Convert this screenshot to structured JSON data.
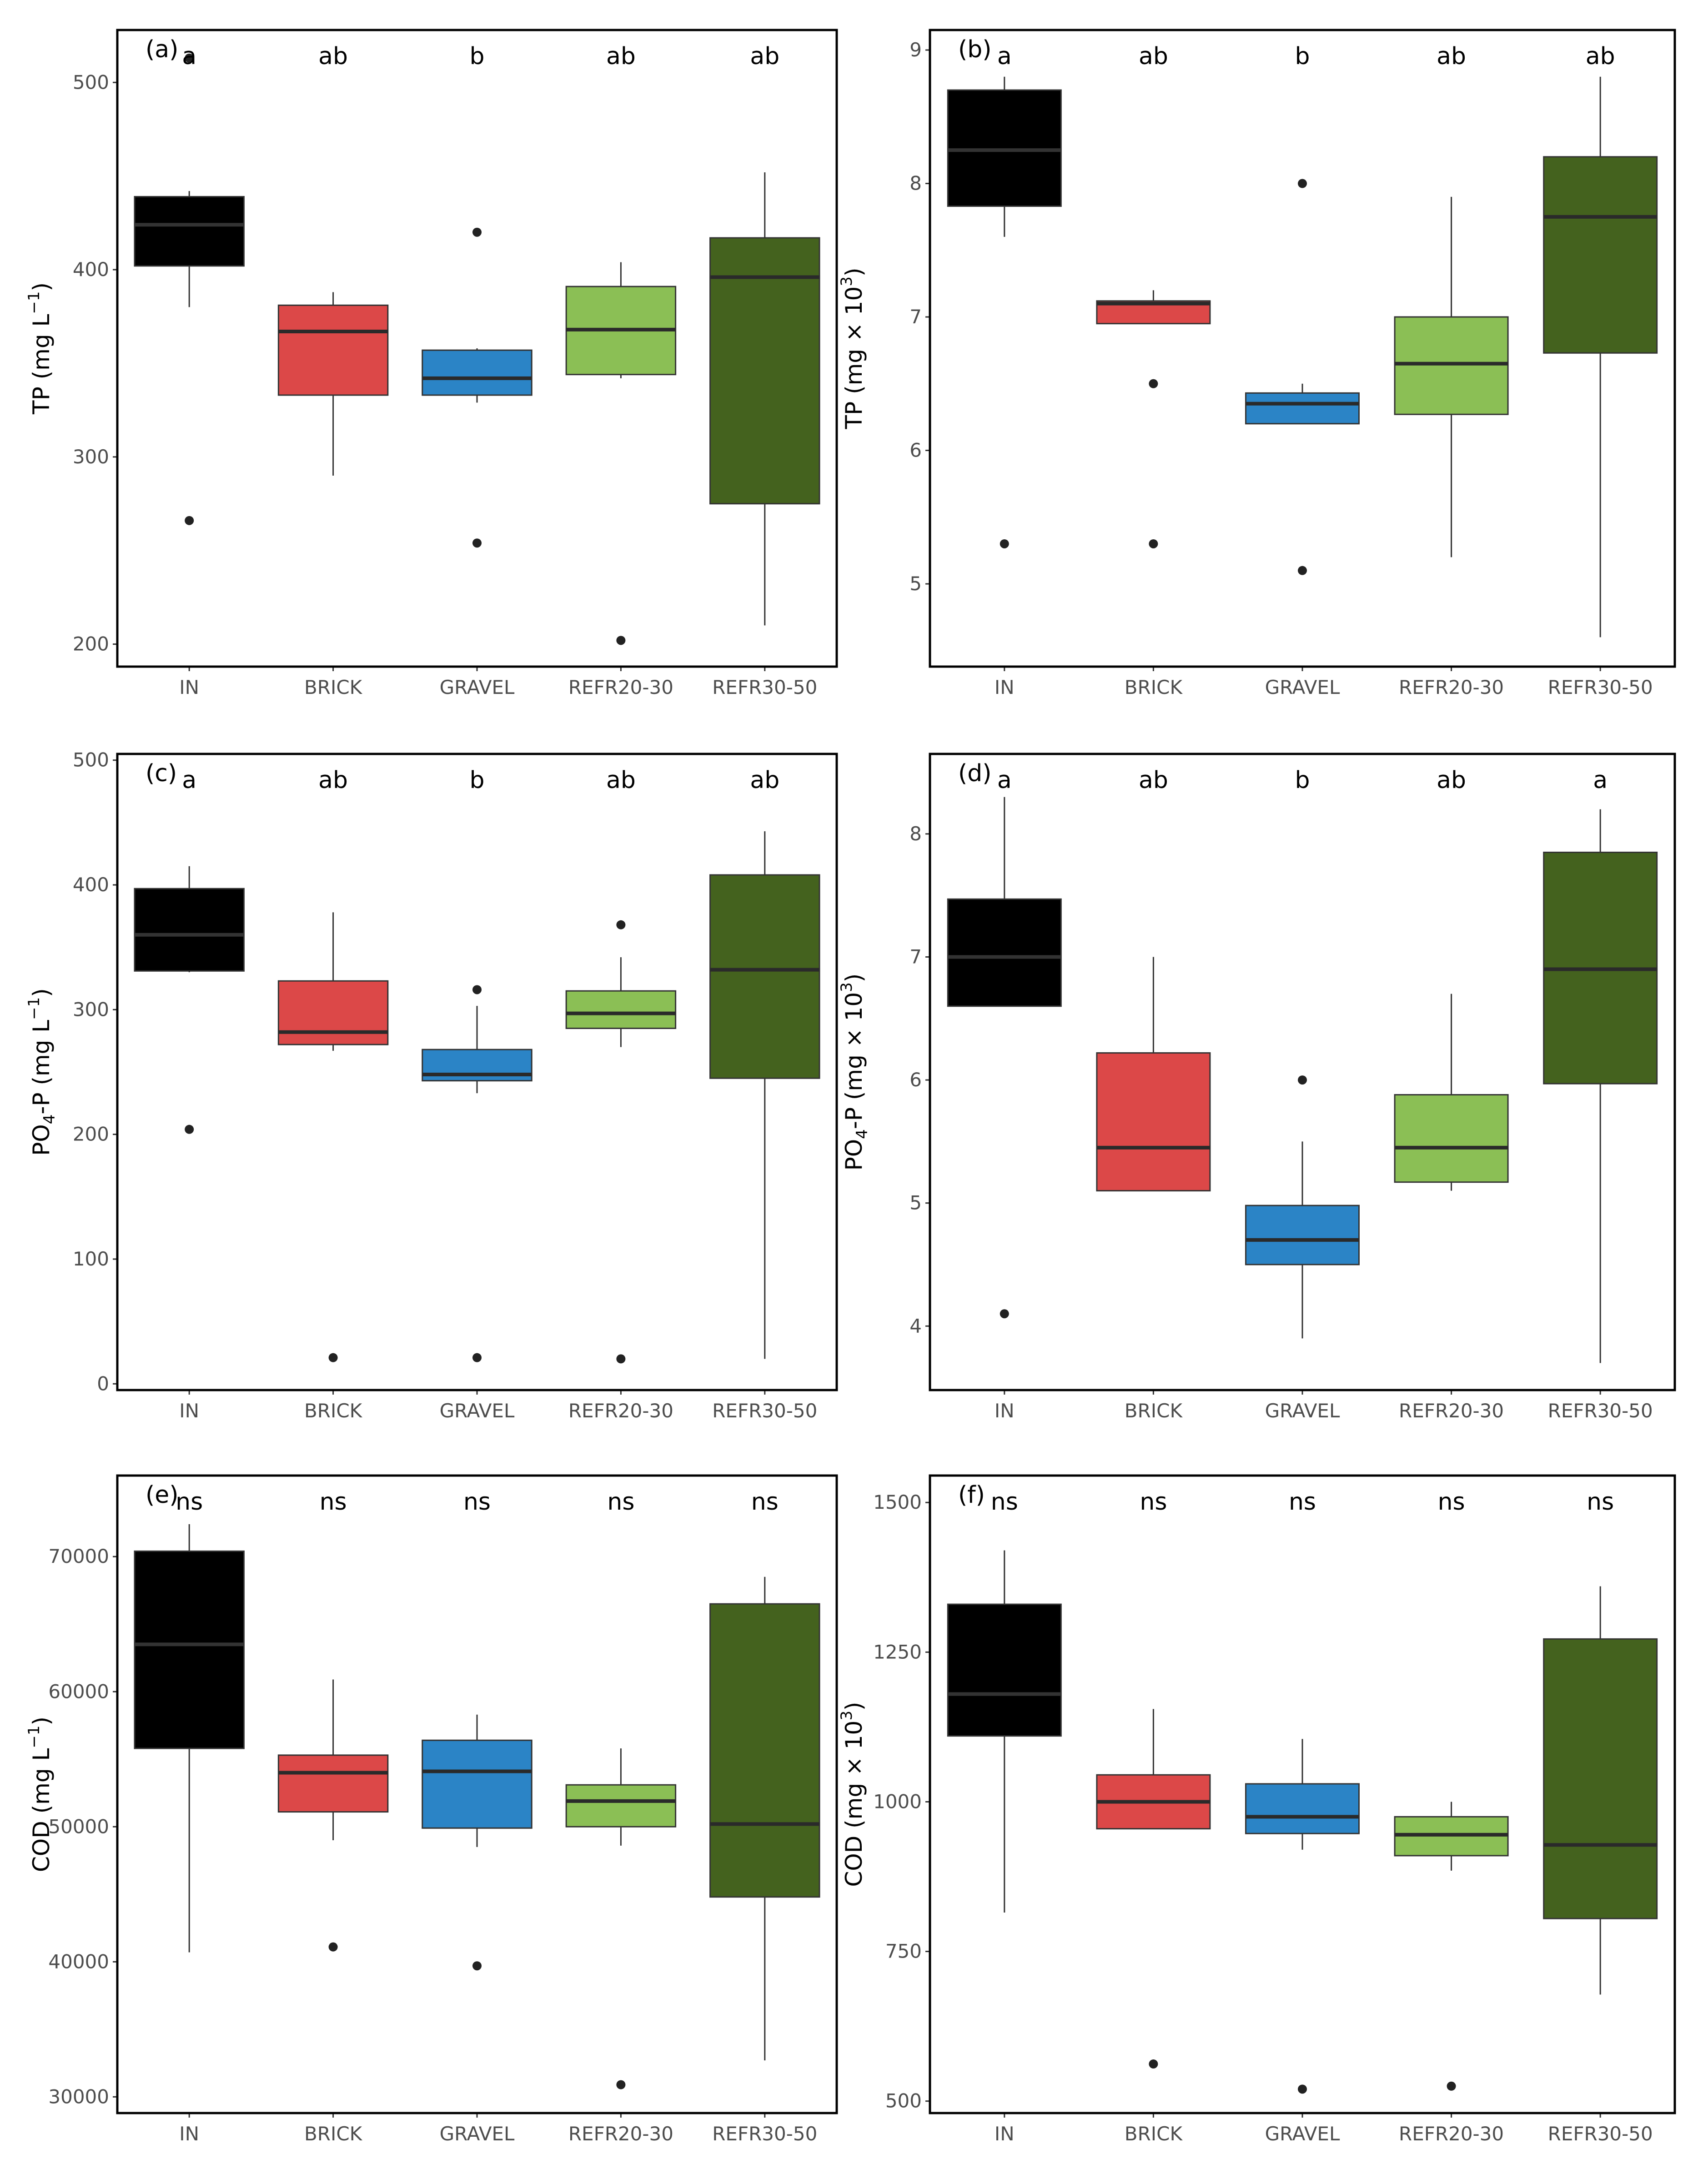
{
  "chart_data": [
    {
      "type": "boxplot",
      "panel_label": "(a)",
      "ylabel": "TP (mg L⁻¹)",
      "ylabel_parts": {
        "main": "TP (mg L",
        "sub": "",
        "sup": "−1",
        "tail": ")"
      },
      "ylim": [
        188,
        528
      ],
      "yticks": [
        200,
        300,
        400,
        500
      ],
      "categories": [
        "IN",
        "BRICK",
        "GRAVEL",
        "REFR20-30",
        "REFR30-50"
      ],
      "colors": [
        "#000000",
        "#dc4848",
        "#2b84c6",
        "#8bbf55",
        "#44621e"
      ],
      "median_color": [
        "#333333",
        "#2a2a2a",
        "#2a2a2a",
        "#2a2a2a",
        "#2a2a2a"
      ],
      "boxes": [
        {
          "q1": 402,
          "median": 424,
          "q3": 439,
          "whisker_low": 380,
          "whisker_high": 442,
          "outliers": [
            513,
            266
          ]
        },
        {
          "q1": 333,
          "median": 367,
          "q3": 381,
          "whisker_low": 290,
          "whisker_high": 388,
          "outliers": []
        },
        {
          "q1": 333,
          "median": 342,
          "q3": 357,
          "whisker_low": 329,
          "whisker_high": 358,
          "outliers": [
            420,
            254
          ]
        },
        {
          "q1": 344,
          "median": 368,
          "q3": 391,
          "whisker_low": 342,
          "whisker_high": 404,
          "outliers": [
            202
          ]
        },
        {
          "q1": 275,
          "median": 396,
          "q3": 417,
          "whisker_low": 210,
          "whisker_high": 452,
          "outliers": []
        }
      ],
      "significance": [
        "a",
        "ab",
        "b",
        "ab",
        "ab"
      ]
    },
    {
      "type": "boxplot",
      "panel_label": "(b)",
      "ylabel": "TP (mg × 10³)",
      "ylabel_parts": {
        "main": "TP (mg × 10",
        "sub": "",
        "sup": "3",
        "tail": ")"
      },
      "ylim": [
        4.38,
        9.15
      ],
      "yticks": [
        5,
        6,
        7,
        8,
        9
      ],
      "categories": [
        "IN",
        "BRICK",
        "GRAVEL",
        "REFR20-30",
        "REFR30-50"
      ],
      "colors": [
        "#000000",
        "#dc4848",
        "#2b84c6",
        "#8bbf55",
        "#44621e"
      ],
      "median_color": [
        "#333333",
        "#2a2a2a",
        "#2a2a2a",
        "#2a2a2a",
        "#2a2a2a"
      ],
      "boxes": [
        {
          "q1": 7.83,
          "median": 8.25,
          "q3": 8.7,
          "whisker_low": 7.6,
          "whisker_high": 8.8,
          "outliers": [
            5.3
          ]
        },
        {
          "q1": 6.95,
          "median": 7.1,
          "q3": 7.12,
          "whisker_low": 6.95,
          "whisker_high": 7.2,
          "outliers": [
            6.5,
            5.3
          ]
        },
        {
          "q1": 6.2,
          "median": 6.35,
          "q3": 6.43,
          "whisker_low": 6.2,
          "whisker_high": 6.5,
          "outliers": [
            8.0,
            5.1
          ]
        },
        {
          "q1": 6.27,
          "median": 6.65,
          "q3": 7.0,
          "whisker_low": 5.2,
          "whisker_high": 7.9,
          "outliers": []
        },
        {
          "q1": 6.73,
          "median": 7.75,
          "q3": 8.2,
          "whisker_low": 4.6,
          "whisker_high": 8.8,
          "outliers": []
        }
      ],
      "significance": [
        "a",
        "ab",
        "b",
        "ab",
        "ab"
      ]
    },
    {
      "type": "boxplot",
      "panel_label": "(c)",
      "ylabel": "PO₄-P (mg L⁻¹)",
      "ylabel_parts": {
        "main": "PO",
        "sub": "4",
        "sup": "−1",
        "mid": "-P (mg L",
        "tail": ")"
      },
      "ylim": [
        -5,
        505
      ],
      "yticks": [
        0,
        100,
        200,
        300,
        400,
        500
      ],
      "categories": [
        "IN",
        "BRICK",
        "GRAVEL",
        "REFR20-30",
        "REFR30-50"
      ],
      "colors": [
        "#000000",
        "#dc4848",
        "#2b84c6",
        "#8bbf55",
        "#44621e"
      ],
      "median_color": [
        "#333333",
        "#2a2a2a",
        "#2a2a2a",
        "#2a2a2a",
        "#2a2a2a"
      ],
      "boxes": [
        {
          "q1": 331,
          "median": 360,
          "q3": 397,
          "whisker_low": 330,
          "whisker_high": 415,
          "outliers": [
            204
          ]
        },
        {
          "q1": 272,
          "median": 282,
          "q3": 323,
          "whisker_low": 267,
          "whisker_high": 378,
          "outliers": [
            21
          ]
        },
        {
          "q1": 243,
          "median": 248,
          "q3": 268,
          "whisker_low": 233,
          "whisker_high": 303,
          "outliers": [
            316,
            21
          ]
        },
        {
          "q1": 285,
          "median": 297,
          "q3": 315,
          "whisker_low": 270,
          "whisker_high": 342,
          "outliers": [
            368,
            20
          ]
        },
        {
          "q1": 245,
          "median": 332,
          "q3": 408,
          "whisker_low": 20,
          "whisker_high": 443,
          "outliers": []
        }
      ],
      "significance": [
        "a",
        "ab",
        "b",
        "ab",
        "ab"
      ]
    },
    {
      "type": "boxplot",
      "panel_label": "(d)",
      "ylabel": "PO₄-P (mg × 10³)",
      "ylabel_parts": {
        "main": "PO",
        "sub": "4",
        "sup": "3",
        "mid": "-P (mg × 10",
        "tail": ")"
      },
      "ylim": [
        3.48,
        8.65
      ],
      "yticks": [
        4,
        5,
        6,
        7,
        8
      ],
      "categories": [
        "IN",
        "BRICK",
        "GRAVEL",
        "REFR20-30",
        "REFR30-50"
      ],
      "colors": [
        "#000000",
        "#dc4848",
        "#2b84c6",
        "#8bbf55",
        "#44621e"
      ],
      "median_color": [
        "#333333",
        "#2a2a2a",
        "#2a2a2a",
        "#2a2a2a",
        "#2a2a2a"
      ],
      "boxes": [
        {
          "q1": 6.6,
          "median": 7.0,
          "q3": 7.47,
          "whisker_low": 6.6,
          "whisker_high": 8.3,
          "outliers": [
            4.1
          ]
        },
        {
          "q1": 5.1,
          "median": 5.45,
          "q3": 6.22,
          "whisker_low": 5.1,
          "whisker_high": 7.0,
          "outliers": []
        },
        {
          "q1": 4.5,
          "median": 4.7,
          "q3": 4.98,
          "whisker_low": 3.9,
          "whisker_high": 5.5,
          "outliers": [
            6.0
          ]
        },
        {
          "q1": 5.17,
          "median": 5.45,
          "q3": 5.88,
          "whisker_low": 5.1,
          "whisker_high": 6.7,
          "outliers": []
        },
        {
          "q1": 5.97,
          "median": 6.9,
          "q3": 7.85,
          "whisker_low": 3.7,
          "whisker_high": 8.2,
          "outliers": []
        }
      ],
      "significance": [
        "a",
        "ab",
        "b",
        "ab",
        "a"
      ]
    },
    {
      "type": "boxplot",
      "panel_label": "(e)",
      "ylabel": "COD (mg L⁻¹)",
      "ylabel_parts": {
        "main": "COD (mg L",
        "sub": "",
        "sup": "−1",
        "tail": ")"
      },
      "ylim": [
        28800,
        76000
      ],
      "yticks": [
        30000,
        40000,
        50000,
        60000,
        70000
      ],
      "categories": [
        "IN",
        "BRICK",
        "GRAVEL",
        "REFR20-30",
        "REFR30-50"
      ],
      "colors": [
        "#000000",
        "#dc4848",
        "#2b84c6",
        "#8bbf55",
        "#44621e"
      ],
      "median_color": [
        "#333333",
        "#2a2a2a",
        "#2a2a2a",
        "#2a2a2a",
        "#2a2a2a"
      ],
      "boxes": [
        {
          "q1": 55800,
          "median": 63500,
          "q3": 70400,
          "whisker_low": 40700,
          "whisker_high": 72400,
          "outliers": []
        },
        {
          "q1": 51100,
          "median": 54000,
          "q3": 55300,
          "whisker_low": 49000,
          "whisker_high": 60900,
          "outliers": [
            41100
          ]
        },
        {
          "q1": 49900,
          "median": 54100,
          "q3": 56400,
          "whisker_low": 48500,
          "whisker_high": 58300,
          "outliers": [
            39700
          ]
        },
        {
          "q1": 50000,
          "median": 51900,
          "q3": 53100,
          "whisker_low": 48600,
          "whisker_high": 55800,
          "outliers": [
            30900
          ]
        },
        {
          "q1": 44800,
          "median": 50200,
          "q3": 66500,
          "whisker_low": 32700,
          "whisker_high": 68500,
          "outliers": []
        }
      ],
      "significance": [
        "ns",
        "ns",
        "ns",
        "ns",
        "ns"
      ]
    },
    {
      "type": "boxplot",
      "panel_label": "(f)",
      "ylabel": "COD (mg × 10³)",
      "ylabel_parts": {
        "main": "COD (mg × 10",
        "sub": "",
        "sup": "3",
        "tail": ")"
      },
      "ylim": [
        480,
        1545
      ],
      "yticks": [
        500,
        750,
        1000,
        1250,
        1500
      ],
      "categories": [
        "IN",
        "BRICK",
        "GRAVEL",
        "REFR20-30",
        "REFR30-50"
      ],
      "colors": [
        "#000000",
        "#dc4848",
        "#2b84c6",
        "#8bbf55",
        "#44621e"
      ],
      "median_color": [
        "#333333",
        "#2a2a2a",
        "#2a2a2a",
        "#2a2a2a",
        "#2a2a2a"
      ],
      "boxes": [
        {
          "q1": 1110,
          "median": 1180,
          "q3": 1330,
          "whisker_low": 815,
          "whisker_high": 1420,
          "outliers": []
        },
        {
          "q1": 955,
          "median": 1000,
          "q3": 1045,
          "whisker_low": 955,
          "whisker_high": 1155,
          "outliers": [
            562
          ]
        },
        {
          "q1": 947,
          "median": 975,
          "q3": 1030,
          "whisker_low": 920,
          "whisker_high": 1105,
          "outliers": [
            520
          ]
        },
        {
          "q1": 910,
          "median": 945,
          "q3": 975,
          "whisker_low": 885,
          "whisker_high": 1000,
          "outliers": [
            525
          ]
        },
        {
          "q1": 805,
          "median": 928,
          "q3": 1272,
          "whisker_low": 678,
          "whisker_high": 1360,
          "outliers": []
        }
      ],
      "significance": [
        "ns",
        "ns",
        "ns",
        "ns",
        "ns"
      ]
    }
  ]
}
